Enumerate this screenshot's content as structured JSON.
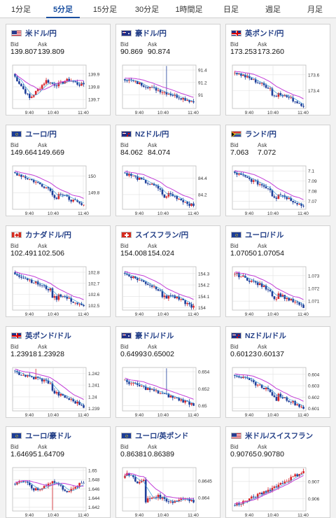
{
  "tabs": [
    {
      "label": "1分足",
      "active": false
    },
    {
      "label": "5分足",
      "active": true
    },
    {
      "label": "15分足",
      "active": false
    },
    {
      "label": "30分足",
      "active": false
    },
    {
      "label": "1時間足",
      "active": false
    },
    {
      "label": "日足",
      "active": false
    },
    {
      "label": "週足",
      "active": false
    },
    {
      "label": "月足",
      "active": false
    }
  ],
  "labels": {
    "bid": "Bid",
    "ask": "Ask"
  },
  "colors": {
    "up": "#d8262c",
    "down": "#1f3f9a",
    "ma": "#c23ed8",
    "ma2": "#3a9bd6",
    "grid": "#e0e0e0",
    "tab_active": "#1a4fa0"
  },
  "cards": [
    {
      "pair": "米ドル/円",
      "flag": "us",
      "bid": "139.807",
      "ask": "139.809",
      "yticks": [
        "139.9",
        "139.8",
        "139.7"
      ],
      "yrange": [
        139.63,
        139.97
      ],
      "xticks": [
        "9:40",
        "10:40",
        "11:40"
      ],
      "trend": "v"
    },
    {
      "pair": "豪ドル/円",
      "flag": "au",
      "bid": "90.869",
      "ask": "90.874",
      "yticks": [
        "91.4",
        "91.2",
        "91"
      ],
      "yrange": [
        90.78,
        91.48
      ],
      "xticks": [
        "9:40",
        "10:40",
        "11:40"
      ],
      "trend": "downspike"
    },
    {
      "pair": "英ポンド/円",
      "flag": "uk",
      "bid": "173.253",
      "ask": "173.260",
      "yticks": [
        "173.6",
        "173.4"
      ],
      "yrange": [
        173.18,
        173.72
      ],
      "xticks": [
        "9:40",
        "10:40",
        "11:40"
      ],
      "trend": "down"
    },
    {
      "pair": "ユーロ/円",
      "flag": "eu",
      "bid": "149.664",
      "ask": "149.669",
      "yticks": [
        "150",
        "149.8"
      ],
      "yrange": [
        149.6,
        150.12
      ],
      "xticks": [
        "9:40",
        "10:40",
        "11:40"
      ],
      "trend": "down"
    },
    {
      "pair": "NZドル/円",
      "flag": "nz",
      "bid": "84.062",
      "ask": "84.074",
      "yticks": [
        "84.4",
        "84.2"
      ],
      "yrange": [
        84.02,
        84.55
      ],
      "xticks": [
        "9:40",
        "10:40",
        "11:40"
      ],
      "trend": "down"
    },
    {
      "pair": "ランド/円",
      "flag": "za",
      "bid": "7.063",
      "ask": "7.072",
      "yticks": [
        "7.1",
        "7.09",
        "7.08",
        "7.07"
      ],
      "yrange": [
        7.062,
        7.105
      ],
      "xticks": [
        "9:40",
        "10:40",
        "11:40"
      ],
      "trend": "down"
    },
    {
      "pair": "カナダドル/円",
      "flag": "ca",
      "bid": "102.491",
      "ask": "102.506",
      "yticks": [
        "102.8",
        "102.7",
        "102.6",
        "102.5"
      ],
      "yrange": [
        102.46,
        102.85
      ],
      "xticks": [
        "9:40",
        "10:40",
        "11:40"
      ],
      "trend": "down"
    },
    {
      "pair": "スイスフラン/円",
      "flag": "ch",
      "bid": "154.008",
      "ask": "154.024",
      "yticks": [
        "154.3",
        "154.2",
        "154.1",
        "154"
      ],
      "yrange": [
        153.98,
        154.36
      ],
      "xticks": [
        "9:40",
        "10:40",
        "11:40"
      ],
      "trend": "down"
    },
    {
      "pair": "ユーロ/ドル",
      "flag": "eu",
      "bid": "1.07050",
      "ask": "1.07054",
      "yticks": [
        "1.073",
        "1.072",
        "1.071"
      ],
      "yrange": [
        1.0703,
        1.0737
      ],
      "xticks": [
        "9:40",
        "10:40",
        "11:40"
      ],
      "trend": "down"
    },
    {
      "pair": "英ポンド/ドル",
      "flag": "uk",
      "bid": "1.23918",
      "ask": "1.23928",
      "yticks": [
        "1.242",
        "1.241",
        "1.24",
        "1.239"
      ],
      "yrange": [
        1.2388,
        1.2425
      ],
      "xticks": [
        "9:40",
        "10:40",
        "11:40"
      ],
      "trend": "spikedown"
    },
    {
      "pair": "豪ドル/ドル",
      "flag": "au",
      "bid": "0.64993",
      "ask": "0.65002",
      "yticks": [
        "0.654",
        "0.652",
        "0.65"
      ],
      "yrange": [
        0.6494,
        0.6545
      ],
      "xticks": [
        "9:40",
        "10:40",
        "11:40"
      ],
      "trend": "downspike"
    },
    {
      "pair": "NZドル/ドル",
      "flag": "nz",
      "bid": "0.60123",
      "ask": "0.60137",
      "yticks": [
        "0.604",
        "0.603",
        "0.602",
        "0.601"
      ],
      "yrange": [
        0.6008,
        0.6046
      ],
      "xticks": [
        "9:40",
        "10:40",
        "11:40"
      ],
      "trend": "down"
    },
    {
      "pair": "ユーロ/豪ドル",
      "flag": "eu",
      "bid": "1.64695",
      "ask": "1.64709",
      "yticks": [
        "1.65",
        "1.648",
        "1.646",
        "1.644",
        "1.642"
      ],
      "yrange": [
        1.6412,
        1.6506
      ],
      "xticks": [
        "9:40",
        "10:40",
        "11:40"
      ],
      "trend": "flat"
    },
    {
      "pair": "ユーロ/英ポンド",
      "flag": "eu",
      "bid": "0.86381",
      "ask": "0.86389",
      "yticks": [
        "0.8645",
        "0.864"
      ],
      "yrange": [
        0.8636,
        0.8649
      ],
      "xticks": [
        "9:40",
        "10:40",
        "11:40"
      ],
      "trend": "drop"
    },
    {
      "pair": "米ドル/スイスフラン",
      "flag": "us",
      "bid": "0.90765",
      "ask": "0.90780",
      "yticks": [
        "0.907",
        "0.906"
      ],
      "yrange": [
        0.9053,
        0.9078
      ],
      "xticks": [
        "9:40",
        "10:40",
        "11:40"
      ],
      "trend": "up"
    }
  ]
}
